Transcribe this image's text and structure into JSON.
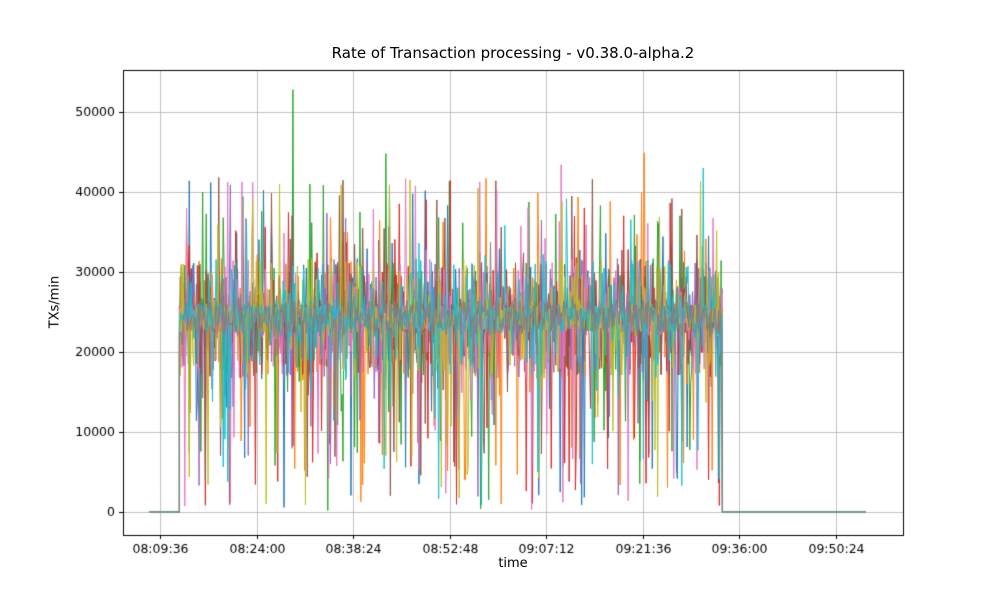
{
  "chart_data": {
    "type": "line",
    "title": "Rate of Transaction processing  -  v0.38.0-alpha.2",
    "xlabel": "time",
    "ylabel": "TXs/min",
    "x_ticks": [
      "08:09:36",
      "08:24:00",
      "08:38:24",
      "08:52:48",
      "09:07:12",
      "09:21:36",
      "09:36:00",
      "09:50:24"
    ],
    "y_ticks": [
      0,
      10000,
      20000,
      30000,
      40000,
      50000
    ],
    "xlim_seconds": [
      29045,
      36026
    ],
    "ylim": [
      -2875,
      55250
    ],
    "grid": true,
    "grid_color": "#b0b0b0",
    "legend": "none",
    "series_count": 10,
    "colors": [
      "#1f77b4",
      "#ff7f0e",
      "#2ca02c",
      "#d62728",
      "#9467bd",
      "#8c564b",
      "#e377c2",
      "#7f7f7f",
      "#bcbd22",
      "#17becf"
    ],
    "draw_order": [
      0,
      1,
      2,
      3,
      4,
      5,
      6,
      8,
      9,
      7
    ],
    "behavior": {
      "zero_start_s": 29280,
      "active_start_s": 29550,
      "active_end_s": 34410,
      "zero_end_s": 35700,
      "sample_step_s": 8,
      "baseline": 24200,
      "band_noise": 1800,
      "mid_spike_prob": 0.2,
      "mid_spike_amp": 5500,
      "down_spike_prob": 0.06,
      "down_spike_min": 500,
      "down_spike_max": 21000,
      "up_spike_prob": 0.03,
      "up_spike_min": 28000,
      "up_spike_max": 42000,
      "seeds": [
        11,
        22,
        33,
        44,
        55,
        66,
        77,
        88,
        99,
        110
      ],
      "per_series_overrides": {
        "7": {
          "band_noise": 2300,
          "mid_spike_prob": 0.05,
          "mid_spike_amp": 3500,
          "down_spike_prob": 0.003,
          "up_spike_prob": 0.003
        }
      }
    },
    "forced_spikes": [
      {
        "series": 2,
        "time": "08:29:26",
        "value": 52800
      },
      {
        "series": 2,
        "time": "08:32:00",
        "value": 41000
      },
      {
        "series": 2,
        "time": "08:43:20",
        "value": 44800
      },
      {
        "series": 6,
        "time": "08:23:30",
        "value": 41200
      },
      {
        "series": 4,
        "time": "08:20:10",
        "value": 40900
      },
      {
        "series": 6,
        "time": "09:09:30",
        "value": 43400
      },
      {
        "series": 1,
        "time": "09:21:50",
        "value": 44900
      },
      {
        "series": 9,
        "time": "09:30:40",
        "value": 43000
      },
      {
        "series": 2,
        "time": "08:34:40",
        "value": 200
      },
      {
        "series": 2,
        "time": "08:57:30",
        "value": 400
      },
      {
        "series": 6,
        "time": "09:05:00",
        "value": 300
      }
    ],
    "summary": "10 overlapping noisy series oscillating around ~24000 TXs/min between ~08:12 and ~09:34, with frequent dips toward 0-20000 and spikes up to ~53000; flat at 0 before ramp-up and after shutdown until ~09:55."
  }
}
